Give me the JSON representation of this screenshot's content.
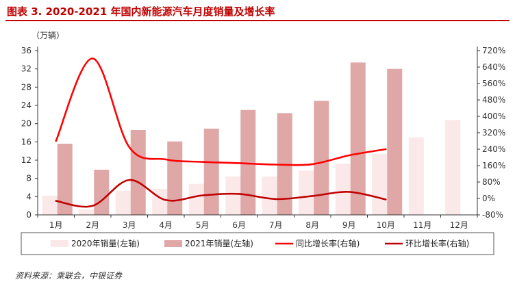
{
  "title": "图表 3. 2020-2021 年国内新能源汽车月度销量及增长率",
  "unit_label": "（万辆）",
  "source": "资料来源：乘联会，中银证券",
  "chart_data": {
    "type": "bar",
    "categories": [
      "1月",
      "2月",
      "3月",
      "4月",
      "5月",
      "6月",
      "7月",
      "8月",
      "9月",
      "10月",
      "11月",
      "12月"
    ],
    "y_left": {
      "min": 0,
      "max": 36,
      "ticks": [
        "0",
        "4",
        "8",
        "12",
        "16",
        "20",
        "24",
        "28",
        "32",
        "36"
      ]
    },
    "y_right": {
      "min": -80,
      "max": 720,
      "ticks": [
        "-80%",
        "0%",
        "80%",
        "160%",
        "240%",
        "320%",
        "400%",
        "480%",
        "560%",
        "640%",
        "720%"
      ]
    },
    "series": [
      {
        "name": "2020年销量(左轴)",
        "type": "bar",
        "axis": "left",
        "color": "#fbe8e8",
        "values": [
          4.2,
          1.2,
          5.3,
          5.7,
          6.8,
          8.4,
          8.4,
          9.7,
          11.2,
          13.4,
          17.0,
          20.8
        ]
      },
      {
        "name": "2021年销量(左轴)",
        "type": "bar",
        "axis": "left",
        "color": "#e0a7a7",
        "values": [
          15.6,
          9.9,
          18.6,
          16.1,
          18.9,
          23.0,
          22.3,
          25.0,
          33.4,
          32.0,
          null,
          null
        ]
      },
      {
        "name": "同比增长率(右轴)",
        "type": "line",
        "axis": "right",
        "color": "#ff0000",
        "values": [
          280,
          682,
          250,
          190,
          178,
          172,
          165,
          167,
          210,
          240,
          null,
          null
        ]
      },
      {
        "name": "环比增长率(右轴)",
        "type": "line",
        "axis": "right",
        "color": "#c00000",
        "values": [
          -12,
          -36,
          90,
          -8,
          15,
          22,
          -3,
          12,
          32,
          -5,
          null,
          null
        ]
      }
    ],
    "grid": false,
    "legend": "bottom"
  }
}
